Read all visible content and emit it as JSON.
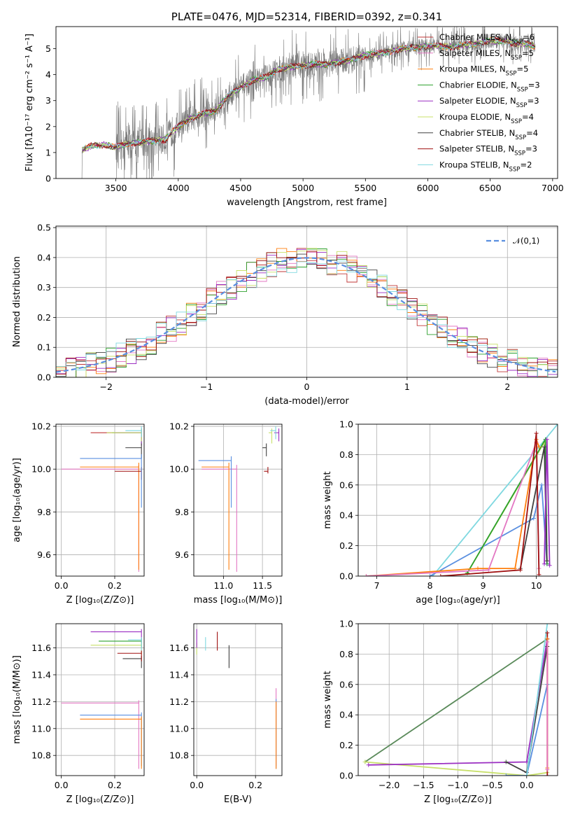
{
  "colors": {
    "Chabrier MILES": "#c03737",
    "Salpeter MILES": "#e377c2",
    "Kroupa MILES": "#ff7f0e",
    "Chabrier ELODIE": "#2ca02c",
    "Salpeter ELODIE": "#9b2fc2",
    "Kroupa ELODIE": "#c8e06a",
    "Chabrier STELIB": "#404040",
    "Salpeter STELIB": "#a01010",
    "Kroupa STELIB": "#7fd8e0",
    "N01": "#5a8fe0",
    "blue": "#6688dd",
    "orange": "#e07020",
    "green": "#5a8a5a"
  },
  "chart_data": [
    {
      "id": "spectrum",
      "type": "line",
      "title": "PLATE=0476, MJD=52314, FIBERID=0392, z=0.341",
      "xlabel": "wavelength [Angstrom, rest frame]",
      "ylabel": "Flux [fλ10⁻¹⁷ erg cm⁻² s⁻¹ A⁻¹]",
      "xlim": [
        3020,
        7040
      ],
      "ylim": [
        0,
        5.85
      ],
      "xticks": [
        "3500",
        "4000",
        "4500",
        "5000",
        "5500",
        "6000",
        "6500",
        "7000"
      ],
      "yticks": [
        "0",
        "1",
        "2",
        "3",
        "4",
        "5"
      ],
      "grid": false,
      "legend": "top-right",
      "legend_entries": [
        "Chabrier MILES, N_SSP=6",
        "Salpeter MILES, N_SSP=5",
        "Kroupa MILES, N_SSP=5",
        "Chabrier ELODIE, N_SSP=3",
        "Salpeter ELODIE, N_SSP=3",
        "Kroupa ELODIE, N_SSP=4",
        "Chabrier STELIB, N_SSP=4",
        "Salpeter STELIB, N_SSP=3",
        "Kroupa STELIB, N_SSP=2"
      ],
      "data_range": [
        3220,
        6860
      ],
      "continuum_points": [
        [
          3220,
          0.0
        ],
        [
          3230,
          1.1
        ],
        [
          3300,
          1.25
        ],
        [
          3400,
          1.3
        ],
        [
          3500,
          1.2
        ],
        [
          3600,
          1.35
        ],
        [
          3700,
          1.4
        ],
        [
          3800,
          1.45
        ],
        [
          3900,
          1.5
        ],
        [
          3950,
          1.8
        ],
        [
          4000,
          2.0
        ],
        [
          4100,
          2.3
        ],
        [
          4200,
          2.5
        ],
        [
          4300,
          2.6
        ],
        [
          4400,
          3.2
        ],
        [
          4500,
          3.5
        ],
        [
          4600,
          3.8
        ],
        [
          4700,
          3.9
        ],
        [
          4800,
          4.2
        ],
        [
          4900,
          4.3
        ],
        [
          5000,
          4.35
        ],
        [
          5100,
          4.4
        ],
        [
          5200,
          4.4
        ],
        [
          5300,
          4.5
        ],
        [
          5400,
          4.6
        ],
        [
          5500,
          4.75
        ],
        [
          5600,
          4.8
        ],
        [
          5700,
          4.9
        ],
        [
          5800,
          5.0
        ],
        [
          5900,
          5.05
        ],
        [
          6000,
          5.1
        ],
        [
          6100,
          5.1
        ],
        [
          6200,
          5.05
        ],
        [
          6300,
          5.15
        ],
        [
          6400,
          5.2
        ],
        [
          6500,
          5.3
        ],
        [
          6600,
          5.3
        ],
        [
          6700,
          5.2
        ],
        [
          6800,
          5.2
        ],
        [
          6860,
          5.1
        ]
      ]
    },
    {
      "id": "residuals",
      "type": "histogram",
      "xlabel": "(data-model)/error",
      "ylabel": "Normed distribution",
      "xlim": [
        -2.5,
        2.5
      ],
      "ylim": [
        0,
        0.505
      ],
      "xticks": [
        "−2",
        "−1",
        "0",
        "1",
        "2"
      ],
      "yticks": [
        "0.0",
        "0.1",
        "0.2",
        "0.3",
        "0.4",
        "0.5"
      ],
      "grid": true,
      "legend": "top-right",
      "legend_entries": [
        "𝒩(0,1)"
      ],
      "bin_width": 0.1,
      "note_curve": "dashed gaussian N(0,1)"
    },
    {
      "id": "age-vs-Z",
      "type": "errorbar",
      "xlabel": "Z [log₁₀(Z/Z⊙)]",
      "ylabel": "age  [log₁₀(age/yr)]",
      "xlim": [
        -0.02,
        0.31
      ],
      "ylim": [
        9.5,
        10.21
      ],
      "xticks": [
        "0.0",
        "0.2"
      ],
      "yticks": [
        "9.6",
        "9.8",
        "10.0",
        "10.2"
      ],
      "grid": true,
      "points": [
        {
          "model": "Chabrier MILES",
          "x": 0.3,
          "y": 10.17,
          "xlo": 0.11,
          "ylo": 10.14
        },
        {
          "model": "Salpeter MILES",
          "x": 0.29,
          "y": 10.0,
          "xlo": 0.0,
          "ylo": 9.52
        },
        {
          "model": "Kroupa MILES",
          "x": 0.29,
          "y": 10.01,
          "xlo": 0.07,
          "ylo": 9.53
        },
        {
          "model": "Chabrier ELODIE",
          "x": 0.3,
          "y": 10.17,
          "xlo": 0.19,
          "ylo": 10.12
        },
        {
          "model": "Salpeter ELODIE",
          "x": 0.3,
          "y": 10.17,
          "xlo": 0.2,
          "ylo": 10.11
        },
        {
          "model": "Kroupa ELODIE",
          "x": 0.3,
          "y": 10.17,
          "xlo": 0.17,
          "ylo": 10.13
        },
        {
          "model": "Chabrier STELIB",
          "x": 0.3,
          "y": 10.1,
          "xlo": 0.24,
          "ylo": 10.05
        },
        {
          "model": "Salpeter STELIB",
          "x": 0.3,
          "y": 9.99,
          "xlo": 0.2,
          "ylo": 9.95
        },
        {
          "model": "Kroupa STELIB",
          "x": 0.3,
          "y": 10.18,
          "xlo": 0.24,
          "ylo": 10.15
        },
        {
          "model": "N01",
          "x": 0.3,
          "y": 10.05,
          "xlo": 0.07,
          "ylo": 9.82
        }
      ]
    },
    {
      "id": "age-vs-mass",
      "type": "errorbar",
      "xlabel": "mass [log₁₀(M/M⊙)]",
      "ylabel": "",
      "xlim": [
        10.62,
        11.75
      ],
      "ylim": [
        9.5,
        10.21
      ],
      "xticks": [
        "11.0",
        "11.5"
      ],
      "yticks": [
        "9.6",
        "9.8",
        "10.0",
        "10.2"
      ],
      "grid": true,
      "points": [
        {
          "model": "Salpeter MILES",
          "x": 11.17,
          "y": 10.0,
          "xlo": 10.72,
          "ylo": 9.52
        },
        {
          "model": "Kroupa MILES",
          "x": 11.07,
          "y": 10.01,
          "xlo": 10.72,
          "ylo": 9.53
        },
        {
          "model": "N01",
          "x": 11.1,
          "y": 10.04,
          "xlo": 10.68,
          "ylo": 9.82
        },
        {
          "model": "Salpeter STELIB",
          "x": 11.57,
          "y": 9.99,
          "xlo": 11.52,
          "ylo": 9.98
        },
        {
          "model": "Chabrier STELIB",
          "x": 11.55,
          "y": 10.1,
          "xlo": 11.5,
          "ylo": 10.06
        },
        {
          "model": "Kroupa ELODIE",
          "x": 11.62,
          "y": 10.17,
          "xlo": 11.58,
          "ylo": 10.12
        },
        {
          "model": "Salpeter ELODIE",
          "x": 11.71,
          "y": 10.17,
          "xlo": 11.65,
          "ylo": 10.13
        },
        {
          "model": "Kroupa STELIB",
          "x": 11.67,
          "y": 10.18,
          "xlo": 11.6,
          "ylo": 10.14
        }
      ]
    },
    {
      "id": "massweight-vs-age",
      "type": "line",
      "xlabel": "age  [log₁₀(age/yr)]",
      "ylabel": "mass weight",
      "xlim": [
        6.65,
        10.4
      ],
      "ylim": [
        0,
        1.0
      ],
      "xticks": [
        "7",
        "8",
        "9",
        "10"
      ],
      "yticks": [
        "0.0",
        "0.2",
        "0.4",
        "0.6",
        "0.8",
        "1.0"
      ],
      "grid": true,
      "series": [
        {
          "model": "Kroupa STELIB",
          "points": [
            [
              8.05,
              0.0
            ],
            [
              10.4,
              1.0
            ]
          ]
        },
        {
          "model": "N01",
          "points": [
            [
              8.0,
              0.0
            ],
            [
              9.95,
              0.38
            ],
            [
              10.1,
              0.6
            ],
            [
              10.2,
              0.08
            ]
          ]
        },
        {
          "model": "Kroupa ELODIE",
          "points": [
            [
              8.7,
              0.02
            ],
            [
              10.15,
              0.88
            ],
            [
              10.2,
              0.1
            ]
          ]
        },
        {
          "model": "Chabrier ELODIE",
          "points": [
            [
              8.7,
              0.02
            ],
            [
              10.17,
              0.9
            ],
            [
              10.2,
              0.08
            ]
          ]
        },
        {
          "model": "Kroupa MILES",
          "points": [
            [
              6.8,
              0.0
            ],
            [
              8.9,
              0.05
            ],
            [
              9.6,
              0.05
            ],
            [
              10.0,
              0.9
            ],
            [
              10.05,
              0.85
            ]
          ]
        },
        {
          "model": "Salpeter MILES",
          "points": [
            [
              6.8,
              0.0
            ],
            [
              9.1,
              0.04
            ],
            [
              10.0,
              0.88
            ],
            [
              10.05,
              0.05
            ]
          ]
        },
        {
          "model": "Chabrier STELIB",
          "points": [
            [
              9.7,
              0.05
            ],
            [
              10.15,
              0.85
            ],
            [
              10.2,
              0.1
            ]
          ]
        },
        {
          "model": "Salpeter STELIB",
          "points": [
            [
              8.2,
              0.0
            ],
            [
              9.7,
              0.04
            ],
            [
              10.0,
              0.94
            ],
            [
              10.05,
              0.01
            ]
          ]
        },
        {
          "model": "Salpeter ELODIE",
          "points": [
            [
              10.15,
              0.08
            ],
            [
              10.2,
              0.9
            ],
            [
              10.25,
              0.07
            ]
          ]
        }
      ]
    },
    {
      "id": "mass-vs-Z",
      "type": "errorbar",
      "xlabel": "Z [log₁₀(Z/Z⊙)]",
      "ylabel": "mass [log₁₀(M/M⊙)]",
      "xlim": [
        -0.02,
        0.31
      ],
      "ylim": [
        10.65,
        11.78
      ],
      "xticks": [
        "0.0",
        "0.2"
      ],
      "yticks": [
        "10.8",
        "11.0",
        "11.2",
        "11.4",
        "11.6"
      ],
      "grid": true,
      "points": [
        {
          "model": "Salpeter MILES",
          "x": 0.29,
          "y": 11.19,
          "xlo": 0.0,
          "ylo": 10.7
        },
        {
          "model": "N01",
          "x": 0.3,
          "y": 11.1,
          "xlo": 0.07,
          "ylo": 10.72
        },
        {
          "model": "Kroupa MILES",
          "x": 0.3,
          "y": 11.07,
          "xlo": 0.07,
          "ylo": 10.7
        },
        {
          "model": "Salpeter ELODIE",
          "x": 0.3,
          "y": 11.72,
          "xlo": 0.11,
          "ylo": 11.6
        },
        {
          "model": "Chabrier ELODIE",
          "x": 0.3,
          "y": 11.65,
          "xlo": 0.14,
          "ylo": 11.6
        },
        {
          "model": "Kroupa ELODIE",
          "x": 0.3,
          "y": 11.62,
          "xlo": 0.11,
          "ylo": 11.55
        },
        {
          "model": "Chabrier STELIB",
          "x": 0.3,
          "y": 11.52,
          "xlo": 0.23,
          "ylo": 11.45
        },
        {
          "model": "Salpeter STELIB",
          "x": 0.3,
          "y": 11.56,
          "xlo": 0.21,
          "ylo": 11.5
        },
        {
          "model": "Kroupa STELIB",
          "x": 0.3,
          "y": 11.66,
          "xlo": 0.25,
          "ylo": 11.58
        }
      ]
    },
    {
      "id": "mass-vs-EBV",
      "type": "errorbar",
      "xlabel": "E(B-V)",
      "ylabel": "",
      "xlim": [
        -0.01,
        0.29
      ],
      "ylim": [
        10.65,
        11.78
      ],
      "xticks": [
        "0.0",
        "0.2"
      ],
      "yticks": [
        "10.8",
        "11.0",
        "11.2",
        "11.4",
        "11.6"
      ],
      "grid": true,
      "points": [
        {
          "model": "Kroupa ELODIE",
          "x": 0.0,
          "y": 11.62,
          "xlo": 0.0,
          "ylo": 11.55
        },
        {
          "model": "Salpeter ELODIE",
          "x": 0.0,
          "y": 11.72,
          "xlo": 0.0,
          "ylo": 11.6
        },
        {
          "model": "Kroupa STELIB",
          "x": 0.03,
          "y": 11.66,
          "xlo": 0.03,
          "ylo": 11.58
        },
        {
          "model": "Salpeter STELIB",
          "x": 0.07,
          "y": 11.7,
          "xlo": 0.07,
          "ylo": 11.58
        },
        {
          "model": "Chabrier STELIB",
          "x": 0.11,
          "y": 11.6,
          "xlo": 0.11,
          "ylo": 11.45
        },
        {
          "model": "Salpeter MILES",
          "x": 0.27,
          "y": 11.28,
          "xlo": 0.27,
          "ylo": 10.72
        },
        {
          "model": "N01",
          "x": 0.27,
          "y": 11.2,
          "xlo": 0.27,
          "ylo": 10.7
        },
        {
          "model": "Kroupa MILES",
          "x": 0.27,
          "y": 11.18,
          "xlo": 0.27,
          "ylo": 10.7
        }
      ]
    },
    {
      "id": "massweight-vs-Z",
      "type": "line",
      "xlabel": "Z [log₁₀(Z/Z⊙)]",
      "ylabel": "mass weight",
      "xlim": [
        -2.45,
        0.45
      ],
      "ylim": [
        0,
        1.0
      ],
      "xticks": [
        "−2.0",
        "−1.5",
        "−1.0",
        "−0.5",
        "0.0"
      ],
      "yticks": [
        "0.0",
        "0.2",
        "0.4",
        "0.6",
        "0.8",
        "1.0"
      ],
      "grid": true,
      "series": [
        {
          "model": "green",
          "points": [
            [
              -2.35,
              0.09
            ],
            [
              0.3,
              0.9
            ]
          ]
        },
        {
          "model": "Kroupa ELODIE",
          "points": [
            [
              -2.35,
              0.09
            ],
            [
              0.0,
              0.0
            ],
            [
              0.3,
              0.02
            ]
          ]
        },
        {
          "model": "Salpeter ELODIE",
          "points": [
            [
              -2.3,
              0.07
            ],
            [
              0.0,
              0.09
            ],
            [
              0.3,
              0.9
            ]
          ]
        },
        {
          "model": "Chabrier STELIB",
          "points": [
            [
              -0.3,
              0.09
            ],
            [
              0.0,
              0.02
            ],
            [
              0.3,
              0.85
            ]
          ]
        },
        {
          "model": "N01",
          "points": [
            [
              -0.3,
              0.0
            ],
            [
              0.0,
              0.0
            ],
            [
              0.3,
              0.6
            ]
          ]
        },
        {
          "model": "Kroupa STELIB",
          "points": [
            [
              0.0,
              0.0
            ],
            [
              0.3,
              1.0
            ]
          ]
        },
        {
          "model": "Salpeter STELIB",
          "points": [
            [
              0.3,
              0.0
            ],
            [
              0.3,
              0.94
            ]
          ]
        },
        {
          "model": "Kroupa MILES",
          "points": [
            [
              0.3,
              0.05
            ],
            [
              0.3,
              0.9
            ]
          ]
        },
        {
          "model": "Salpeter MILES",
          "points": [
            [
              0.3,
              0.04
            ],
            [
              0.3,
              0.88
            ]
          ]
        }
      ]
    }
  ]
}
